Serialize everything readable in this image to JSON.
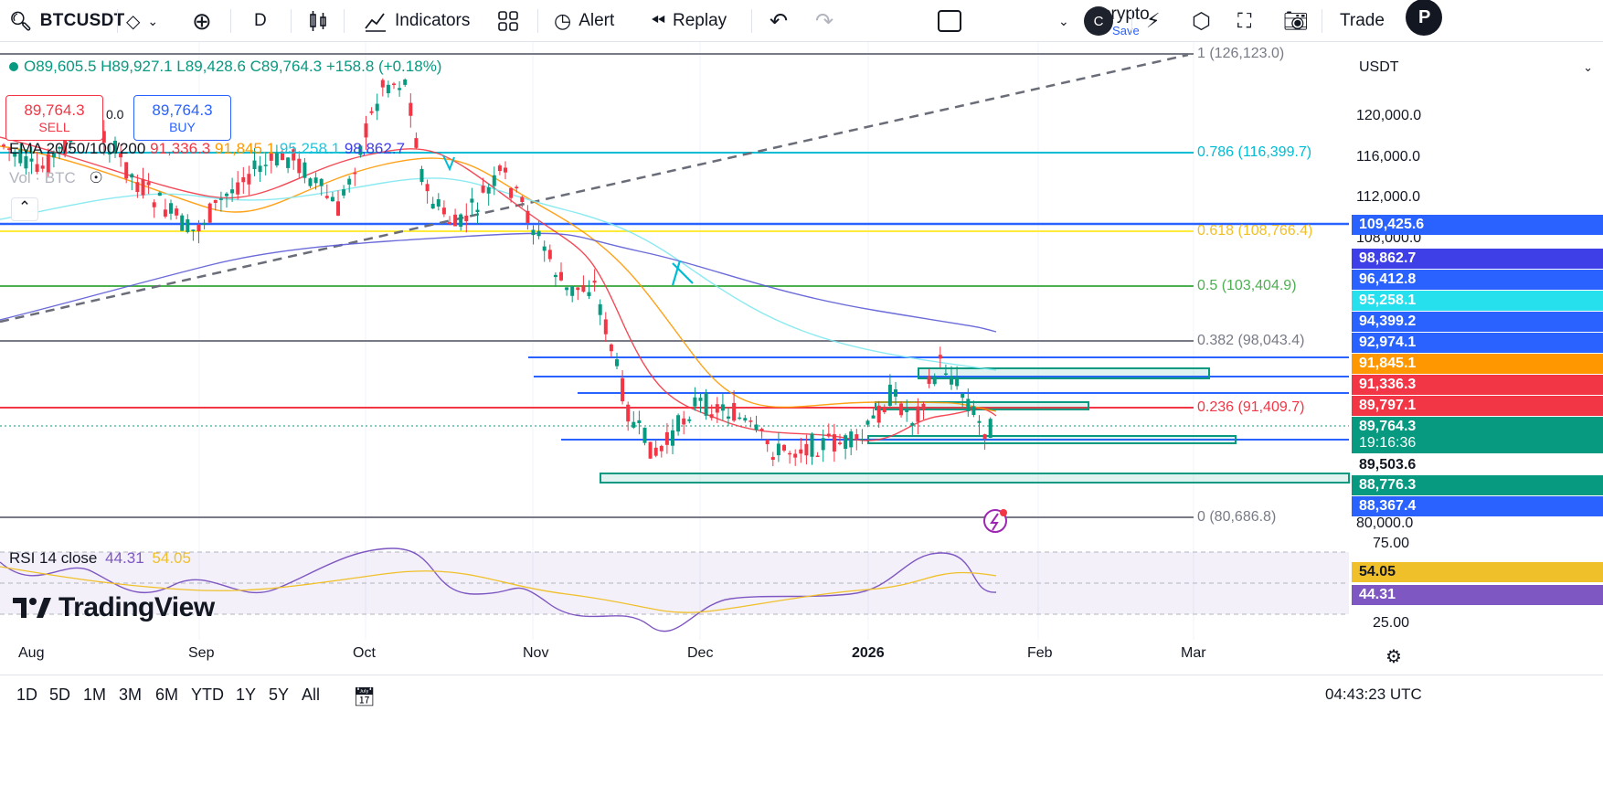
{
  "toolbar": {
    "symbol": "BTCUSDT",
    "interval": "D",
    "indicators_label": "Indicators",
    "alert_label": "Alert",
    "replay_label": "Replay",
    "layout_name": "crypto",
    "layout_status": "Save",
    "user_initial": "C",
    "trade_label": "Trade",
    "profile_initial": "P"
  },
  "legend": {
    "ohlc": "O89,605.5 H89,927.1 L89,428.6 C89,764.3 +158.8 (+0.18%)",
    "sell_price": "89,764.3",
    "sell_label": "SELL",
    "spread": "0.0",
    "buy_price": "89,764.3",
    "buy_label": "BUY",
    "ema_name": "EMA 20/50/100/200",
    "ema_vals": [
      "91,336.3",
      "91,845.1",
      "95,258.1",
      "98,862.7"
    ],
    "vol_label": "Vol · BTC",
    "rsi_name": "RSI 14 close",
    "rsi_val": "44.31",
    "rsi_ma": "54.05"
  },
  "colors": {
    "up": "#089981",
    "down": "#f23645",
    "ema20": "#f23645",
    "ema50": "#ff9800",
    "ema100": "#7ee8f0",
    "ema200": "#5b5bd6",
    "fib_blue": "#2962ff",
    "fib_teal": "#00bcd4",
    "fib_green": "#4caf50",
    "fib_yellow": "#ffeb3b",
    "fib_grey": "#787b86",
    "zone": "#089981",
    "rsi": "#7e57c2",
    "rsi_ma": "#f0c02a"
  },
  "fib_levels": [
    {
      "label": "1 (126,123.0)",
      "value": 126123.0
    },
    {
      "label": "0.786 (116,399.7)",
      "value": 116399.7
    },
    {
      "label": "0.618 (108,766.4)",
      "value": 108766.4
    },
    {
      "label": "0.5 (103,404.9)",
      "value": 103404.9
    },
    {
      "label": "0.382 (98,043.4)",
      "value": 98043.4
    },
    {
      "label": "0.236 (91,409.7)",
      "value": 91409.7
    },
    {
      "label": "0 (80,686.8)",
      "value": 80686.8
    }
  ],
  "price_axis": {
    "currency": "USDT",
    "ticks": [
      "120,000.0",
      "116,000.0",
      "112,000.0",
      "108,000.0",
      "80,000.0"
    ],
    "tags": [
      {
        "label": "109,425.6",
        "color": "#2962ff"
      },
      {
        "label": "98,862.7",
        "color": "#3f3fe8"
      },
      {
        "label": "96,412.8",
        "color": "#2962ff"
      },
      {
        "label": "95,258.1",
        "color": "#26e0ee"
      },
      {
        "label": "94,399.2",
        "color": "#2962ff"
      },
      {
        "label": "92,974.1",
        "color": "#2962ff"
      },
      {
        "label": "91,845.1",
        "color": "#ff9800"
      },
      {
        "label": "91,336.3",
        "color": "#f23645"
      },
      {
        "label": "89,797.1",
        "color": "#f23645"
      },
      {
        "label": "89,764.3",
        "color": "#089981"
      },
      {
        "label": "19:16:36",
        "color": "#089981"
      },
      {
        "label": "89,503.6",
        "color": "#089981"
      },
      {
        "label": "88,776.3",
        "color": "#089981"
      },
      {
        "label": "88,367.4",
        "color": "#2962ff"
      }
    ],
    "rsi_ticks": [
      "75.00",
      "25.00"
    ],
    "rsi_tags": [
      {
        "label": "54.05",
        "color": "#f0c02a"
      },
      {
        "label": "44.31",
        "color": "#7e57c2"
      }
    ]
  },
  "time_axis": [
    "Aug",
    "Sep",
    "Oct",
    "Nov",
    "Dec",
    "2026",
    "Feb",
    "Mar"
  ],
  "bottom": {
    "ranges": [
      "1D",
      "5D",
      "1M",
      "3M",
      "6M",
      "YTD",
      "1Y",
      "5Y",
      "All"
    ],
    "clock": "04:43:23 UTC"
  },
  "brand": "TradingView"
}
